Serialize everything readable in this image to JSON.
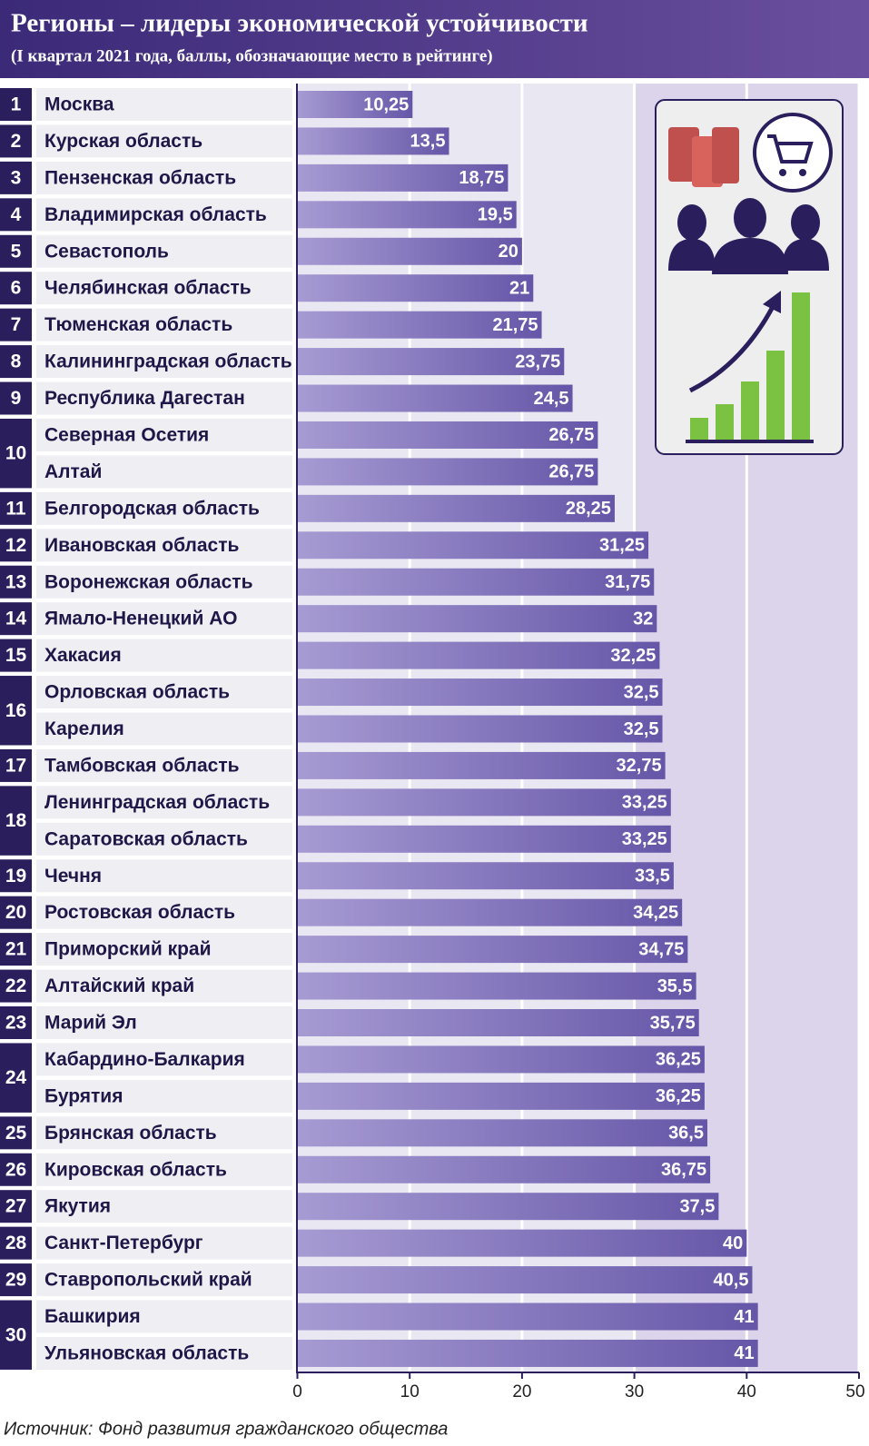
{
  "chart_data": {
    "type": "bar",
    "orientation": "horizontal",
    "title": "Регионы – лидеры экономической устойчивости",
    "subtitle": "(I квартал 2021 года, баллы, обозначающие место в рейтинге)",
    "source": "Источник: Фонд развития гражданского общества",
    "ranks": [
      1,
      2,
      3,
      4,
      5,
      6,
      7,
      8,
      9,
      10,
      null,
      11,
      12,
      13,
      14,
      15,
      16,
      null,
      17,
      18,
      null,
      19,
      20,
      21,
      22,
      23,
      24,
      null,
      25,
      26,
      27,
      28,
      29,
      30,
      null
    ],
    "categories": [
      "Москва",
      "Курская область",
      "Пензенская область",
      "Владимирская область",
      "Севастополь",
      "Челябинская область",
      "Тюменская область",
      "Калининградская область",
      "Республика Дагестан",
      "Северная Осетия",
      "Алтай",
      "Белгородская область",
      "Ивановская область",
      "Воронежская область",
      "Ямало-Ненецкий АО",
      "Хакасия",
      "Орловская область",
      "Карелия",
      "Тамбовская область",
      "Ленинградская область",
      "Саратовская область",
      "Чечня",
      "Ростовская область",
      "Приморский край",
      "Алтайский край",
      "Марий Эл",
      "Кабардино-Балкария",
      "Бурятия",
      "Брянская область",
      "Кировская область",
      "Якутия",
      "Санкт-Петербург",
      "Ставропольский край",
      "Башкирия",
      "Ульяновская область"
    ],
    "values": [
      10.25,
      13.5,
      18.75,
      19.5,
      20,
      21,
      21.75,
      23.75,
      24.5,
      26.75,
      26.75,
      28.25,
      31.25,
      31.75,
      32,
      32.25,
      32.5,
      32.5,
      32.75,
      33.25,
      33.25,
      33.5,
      34.25,
      34.75,
      35.5,
      35.75,
      36.25,
      36.25,
      36.5,
      36.75,
      37.5,
      40,
      40.5,
      41,
      41
    ],
    "value_labels": [
      "10,25",
      "13,5",
      "18,75",
      "19,5",
      "20",
      "21",
      "21,75",
      "23,75",
      "24,5",
      "26,75",
      "26,75",
      "28,25",
      "31,25",
      "31,75",
      "32",
      "32,25",
      "32,5",
      "32,5",
      "32,75",
      "33,25",
      "33,25",
      "33,5",
      "34,25",
      "34,75",
      "35,5",
      "35,75",
      "36,25",
      "36,25",
      "36,5",
      "36,75",
      "37,5",
      "40",
      "40,5",
      "41",
      "41"
    ],
    "xlim": [
      0,
      50
    ],
    "xticks": [
      0,
      10,
      20,
      30,
      40,
      50
    ],
    "grid": true
  }
}
